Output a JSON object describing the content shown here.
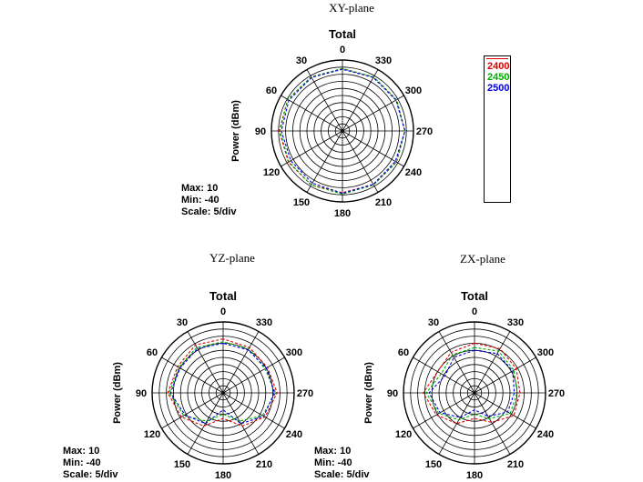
{
  "chart_data": [
    {
      "type": "polar",
      "plane_title": "XY-plane",
      "title": "Total",
      "ylabel": "Power  (dBm)",
      "angles": [
        "0",
        "30",
        "60",
        "90",
        "120",
        "150",
        "180",
        "210",
        "240",
        "270",
        "300",
        "330"
      ],
      "rlim": [
        -40,
        10
      ],
      "rings": 10,
      "max_label": "Max: 10",
      "min_label": "Min: -40",
      "scale_label": "Scale: 5/div",
      "series": [
        {
          "name": "2400",
          "color": "#e00000",
          "r": [
            4,
            4,
            4.5,
            4.5,
            4,
            4,
            3.5,
            3.5,
            4,
            4,
            4,
            4
          ]
        },
        {
          "name": "2450",
          "color": "#00b000",
          "r": [
            4,
            4,
            4.5,
            4,
            3.5,
            4,
            4.5,
            4,
            4,
            4,
            4,
            4
          ]
        },
        {
          "name": "2500",
          "color": "#0000e0",
          "r": [
            3.5,
            3.5,
            3.5,
            3,
            2,
            2.5,
            4,
            3.5,
            3,
            4,
            3.5,
            3.5
          ]
        }
      ]
    },
    {
      "type": "polar",
      "plane_title": "YZ-plane",
      "title": "Total",
      "ylabel": "Power  (dBm)",
      "angles": [
        "0",
        "30",
        "60",
        "90",
        "120",
        "150",
        "180",
        "210",
        "240",
        "270",
        "300",
        "330"
      ],
      "rlim": [
        -40,
        10
      ],
      "rings": 10,
      "max_label": "Max: 10",
      "min_label": "Min: -40",
      "scale_label": "Scale: 5/div",
      "series": [
        {
          "name": "2400",
          "color": "#e00000",
          "r": [
            -2,
            -1,
            -3,
            -1,
            -6,
            -13,
            -22,
            -13,
            -6,
            -2,
            -4,
            -3
          ]
        },
        {
          "name": "2450",
          "color": "#00b000",
          "r": [
            -4,
            -3,
            -4,
            -2,
            -8,
            -17,
            -25,
            -17,
            -8,
            -3,
            -6,
            -4
          ]
        },
        {
          "name": "2500",
          "color": "#0000e0",
          "r": [
            -5,
            -4,
            -5,
            -3,
            -9,
            -15,
            -28,
            -15,
            -7,
            -4,
            -5,
            -5
          ]
        }
      ]
    },
    {
      "type": "polar",
      "plane_title": "ZX-plane",
      "title": "Total",
      "ylabel": "Power  (dBm)",
      "angles": [
        "0",
        "30",
        "60",
        "90",
        "120",
        "150",
        "180",
        "210",
        "240",
        "270",
        "300",
        "330"
      ],
      "rlim": [
        -40,
        10
      ],
      "rings": 10,
      "max_label": "Max: 10",
      "min_label": "Min: -40",
      "scale_label": "Scale: 5/div",
      "series": [
        {
          "name": "2400",
          "color": "#e00000",
          "r": [
            -5,
            -7,
            -10,
            -4,
            -9,
            -15,
            -22,
            -16,
            -8,
            -8,
            -6,
            -4
          ]
        },
        {
          "name": "2450",
          "color": "#00b000",
          "r": [
            -8,
            -9,
            -13,
            -6,
            -11,
            -18,
            -25,
            -19,
            -11,
            -10,
            -8,
            -6
          ]
        },
        {
          "name": "2500",
          "color": "#0000e0",
          "r": [
            -10,
            -11,
            -16,
            -8,
            -12,
            -20,
            -28,
            -21,
            -13,
            -12,
            -9,
            -8
          ]
        }
      ]
    }
  ],
  "legend": [
    {
      "label": "2400",
      "color": "#e00000"
    },
    {
      "label": "2450",
      "color": "#00b000"
    },
    {
      "label": "2500",
      "color": "#0000e0"
    }
  ]
}
